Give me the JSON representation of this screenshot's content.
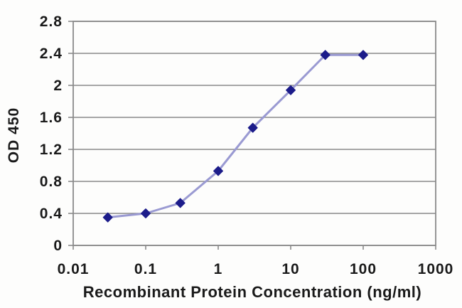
{
  "chart_data": {
    "type": "line",
    "title": "",
    "xlabel": "Recombinant Protein Concentration (ng/ml)",
    "ylabel": "OD 450",
    "x_scale": "log",
    "xlim": [
      0.01,
      1000
    ],
    "ylim": [
      0,
      2.8
    ],
    "x_ticks": [
      0.01,
      0.1,
      1,
      10,
      100,
      1000
    ],
    "x_tick_labels": [
      "0.01",
      "0.1",
      "1",
      "10",
      "100",
      "1000"
    ],
    "y_ticks": [
      0,
      0.4,
      0.8,
      1.2,
      1.6,
      2,
      2.4,
      2.8
    ],
    "y_tick_labels": [
      "0",
      "0.4",
      "0.8",
      "1.2",
      "1.6",
      "2",
      "2.4",
      "2.8"
    ],
    "grid": "horizontal",
    "legend": "none",
    "series": [
      {
        "name": "OD 450",
        "marker": "diamond",
        "x": [
          0.03,
          0.1,
          0.3,
          1,
          3,
          10,
          30,
          100
        ],
        "y": [
          0.35,
          0.4,
          0.53,
          0.93,
          1.47,
          1.94,
          2.38,
          2.38
        ]
      }
    ]
  },
  "colors": {
    "background": "#fdfdfc",
    "plot_border": "#8a8a8a",
    "gridline": "#8a8a8a",
    "tick": "#555555",
    "line": "#9a9ad2",
    "marker": "#1c1c8a",
    "text": "#1a1a1a"
  }
}
